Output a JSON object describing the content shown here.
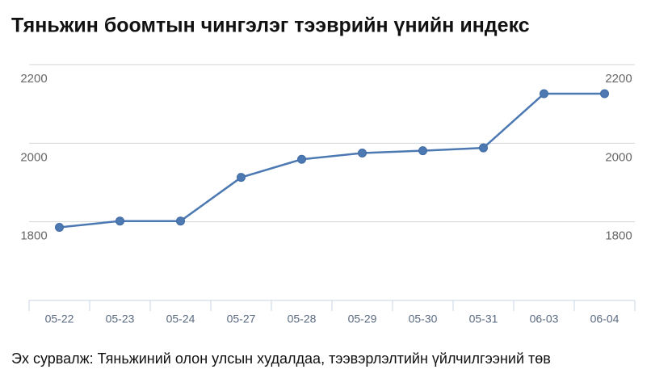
{
  "chart_data": {
    "type": "line",
    "title": "Тяньжин боомтын чингэлэг тээврийн үнийн индекс",
    "source": "Эх сурвалж: Тяньжиний олон улсын худалдаа, тээвэрлэлтийн үйлчилгээний төв",
    "categories": [
      "05-22",
      "05-23",
      "05-24",
      "05-27",
      "05-28",
      "05-29",
      "05-30",
      "05-31",
      "06-03",
      "06-04"
    ],
    "series": [
      {
        "color": "#4d79b3",
        "values": [
          1786,
          1802,
          1802,
          1913,
          1959,
          1975,
          1981,
          1988,
          2126,
          2126
        ]
      }
    ],
    "ylim": [
      1600,
      2200
    ],
    "yticks": [
      1800,
      2000,
      2200
    ],
    "grid": true
  }
}
